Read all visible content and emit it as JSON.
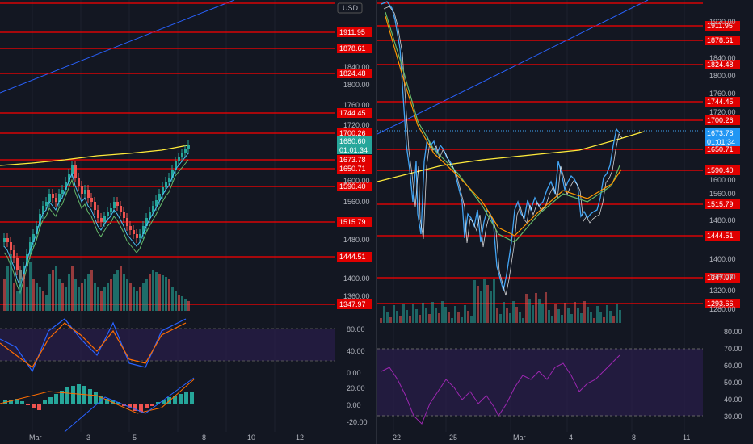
{
  "colors": {
    "background": "#131722",
    "grid": "#1e222d",
    "level_line": "#ff0000",
    "up": "#26a69a",
    "down": "#ef5350",
    "ema200": "#ffeb3b",
    "trendline": "#2962ff",
    "price_line": "#42a5f5",
    "rsi_band": "#2a1e4a",
    "rsi_line": "#9c27b0",
    "text": "#b2b5be",
    "current_price_tag": "#26a69a"
  },
  "left_chart": {
    "currency": "USD",
    "price_axis_labels": [
      "1840.00",
      "1800.00",
      "1760.00",
      "1720.00",
      "1600.00",
      "1560.00",
      "1480.00",
      "1400.00",
      "1360.00"
    ],
    "level_tags": [
      "1911.95",
      "1878.61",
      "1824.48",
      "1744.45",
      "1700.26",
      "1673.78",
      "1650.71",
      "1590.40",
      "1515.79",
      "1444.51",
      "1347.97"
    ],
    "current_price": "1680.60",
    "countdown": "01:01:34",
    "stoch_axis_labels": [
      "80.00",
      "40.00",
      "0.00"
    ],
    "macd_axis_labels": [
      "20.00",
      "0.00",
      "-20.00"
    ],
    "time_labels": [
      "Mar",
      "3",
      "5",
      "8",
      "10",
      "12"
    ]
  },
  "right_chart": {
    "price_axis_labels": [
      "1920.00",
      "1840.00",
      "1800.00",
      "1760.00",
      "1720.00",
      "1600.00",
      "1560.00",
      "1480.00",
      "1400.00",
      "1360.00",
      "1320.00",
      "1280.00"
    ],
    "level_tags": [
      "1911.95",
      "1878.61",
      "1824.48",
      "1744.45",
      "1700.26",
      "1650.71",
      "1590.40",
      "1515.79",
      "1444.51",
      "1347.97",
      "1293.66"
    ],
    "current_price": "1673.78",
    "countdown": "01:01:34",
    "rsi_axis_labels": [
      "80.00",
      "70.00",
      "60.00",
      "50.00",
      "40.00",
      "30.00"
    ],
    "time_labels": [
      "22",
      "25",
      "Mar",
      "4",
      "8",
      "11"
    ]
  }
}
